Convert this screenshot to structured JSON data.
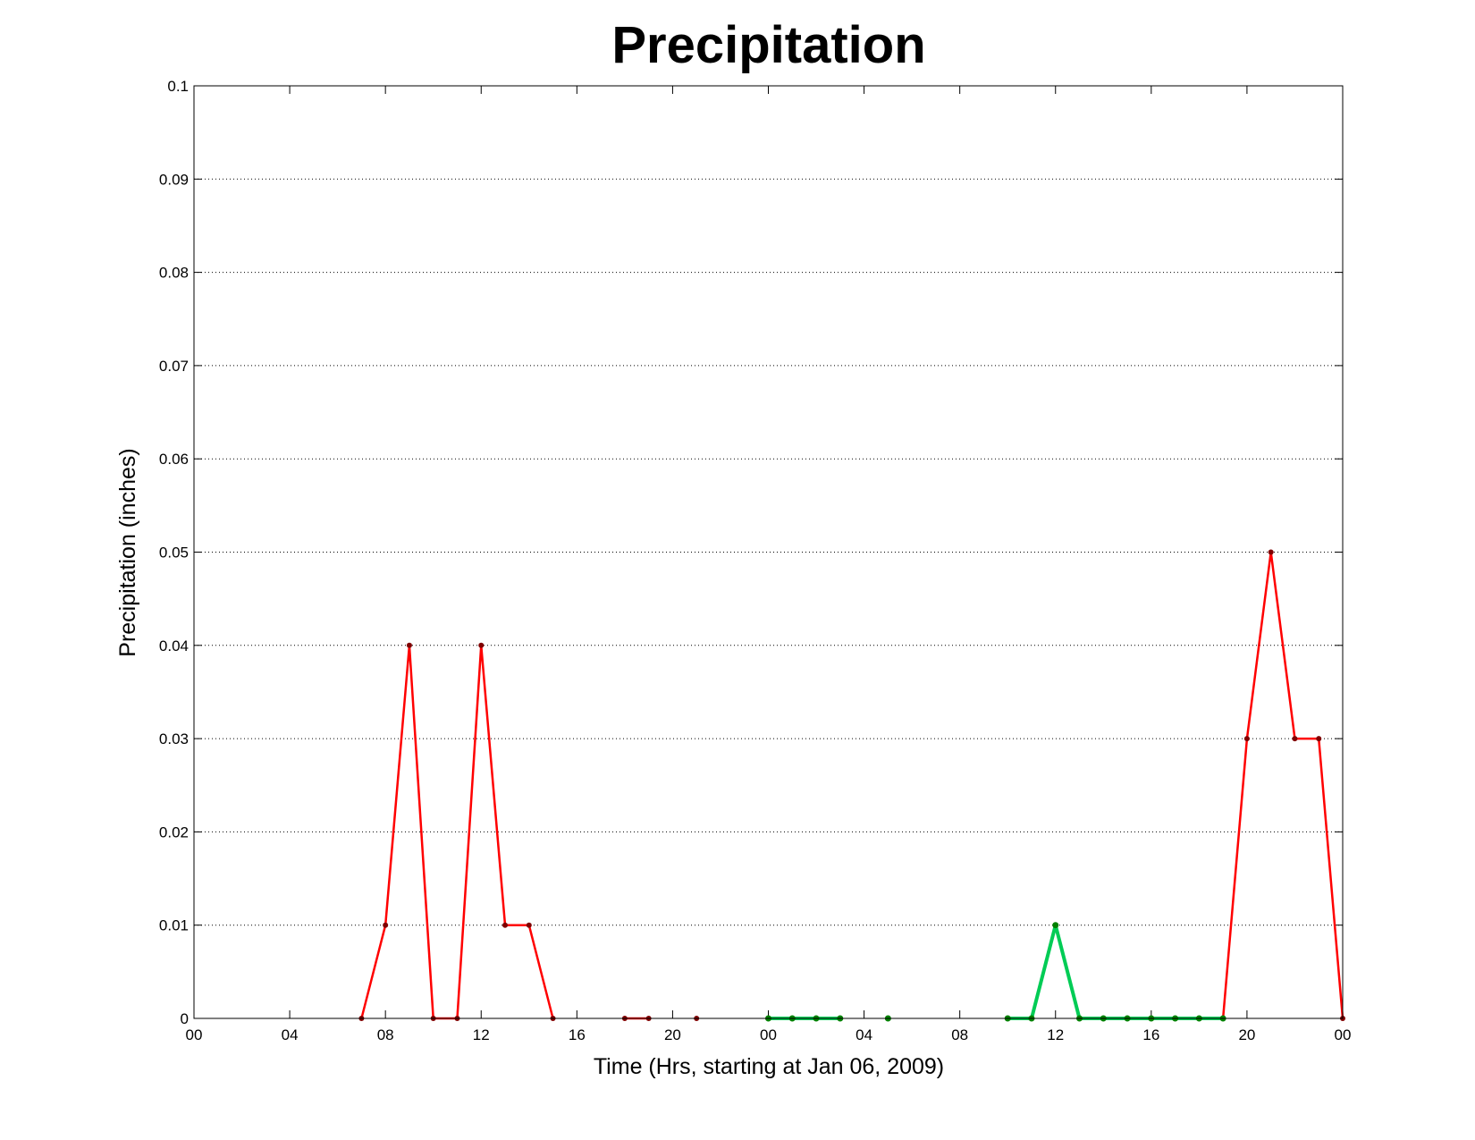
{
  "chart_data": {
    "type": "line",
    "title": "Precipitation",
    "xlabel": "Time (Hrs, starting at Jan 06, 2009)",
    "ylabel": "Precipitation (inches)",
    "xlim": [
      0,
      48
    ],
    "ylim": [
      0,
      0.1
    ],
    "grid": true,
    "x_tick_labels": [
      "00",
      "04",
      "08",
      "12",
      "16",
      "20",
      "00",
      "04",
      "08",
      "12",
      "16",
      "20",
      "00"
    ],
    "y_tick_labels": [
      "0",
      "0.01",
      "0.02",
      "0.03",
      "0.04",
      "0.05",
      "0.06",
      "0.07",
      "0.08",
      "0.09",
      "0.1"
    ],
    "series": [
      {
        "color": "#ff0000",
        "marker_color": "#800000",
        "line_width": "thin",
        "x": [
          7,
          8,
          9,
          10,
          11,
          12,
          13,
          14,
          15,
          null,
          18,
          19,
          null,
          21,
          null,
          24,
          null,
          43,
          44,
          45,
          46,
          47,
          48
        ],
        "y": [
          0,
          0.01,
          0.04,
          0,
          0,
          0.04,
          0.01,
          0.01,
          0,
          null,
          0,
          0,
          null,
          0,
          null,
          0,
          null,
          0,
          0.03,
          0.05,
          0.03,
          0.03,
          0
        ]
      },
      {
        "color": "#00cc55",
        "marker_color": "#008000",
        "line_width": "thick",
        "x": [
          24,
          25,
          26,
          27,
          null,
          29,
          null,
          34,
          35,
          36,
          37,
          38,
          39,
          40,
          41,
          42,
          43
        ],
        "y": [
          0,
          0,
          0,
          0,
          null,
          0,
          null,
          0,
          0,
          0.01,
          0,
          0,
          0,
          0,
          0,
          0,
          0
        ]
      }
    ]
  }
}
